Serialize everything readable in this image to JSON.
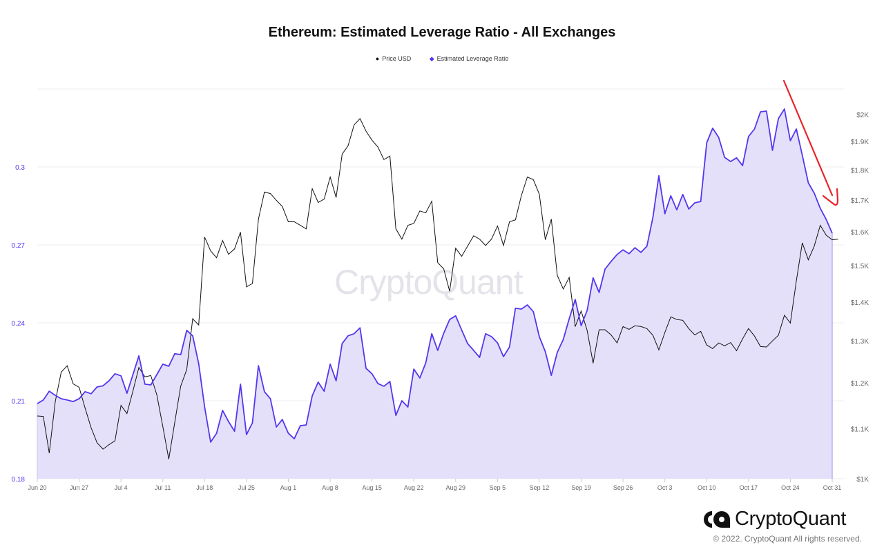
{
  "chart_data": {
    "type": "line",
    "title": "Ethereum: Estimated Leverage Ratio - All Exchanges",
    "legend": [
      "Price USD",
      "Estimated Leverage Ratio"
    ],
    "legend_placement": "top-center",
    "x_start": "2022-06-20",
    "x_end": "2022-11-01",
    "x_tick_labels": [
      "Jun 20",
      "Jun 27",
      "Jul 4",
      "Jul 11",
      "Jul 18",
      "Jul 25",
      "Aug 1",
      "Aug 8",
      "Aug 15",
      "Aug 22",
      "Aug 29",
      "Sep 5",
      "Sep 12",
      "Sep 19",
      "Sep 26",
      "Oct 3",
      "Oct 10",
      "Oct 17",
      "Oct 24",
      "Oct 31"
    ],
    "left_axis": {
      "label": "Estimated Leverage Ratio",
      "ylim": [
        0.18,
        0.33
      ],
      "ticks": [
        "0.18",
        "0.21",
        "0.24",
        "0.27",
        "0.3"
      ],
      "tick_values": [
        0.18,
        0.21,
        0.24,
        0.27,
        0.3
      ]
    },
    "right_axis": {
      "label": "Price USD",
      "scale": "log",
      "ylim": [
        1000,
        2100
      ],
      "ticks": [
        "$1K",
        "$1.1K",
        "$1.2K",
        "$1.3K",
        "$1.4K",
        "$1.5K",
        "$1.6K",
        "$1.7K",
        "$1.8K",
        "$1.9K",
        "$2K"
      ],
      "tick_values": [
        1000,
        1100,
        1200,
        1300,
        1400,
        1500,
        1600,
        1700,
        1800,
        1900,
        2000
      ]
    },
    "grid": true,
    "series": [
      {
        "name": "Estimated Leverage Ratio",
        "axis": "left",
        "color": "#5535ee",
        "fill": "#e4e0f9",
        "values": [
          0.2089,
          0.2103,
          0.2137,
          0.2121,
          0.2108,
          0.2103,
          0.2097,
          0.2108,
          0.2135,
          0.2127,
          0.2153,
          0.2158,
          0.2177,
          0.2204,
          0.2196,
          0.2129,
          0.2201,
          0.2273,
          0.2164,
          0.2161,
          0.2201,
          0.2241,
          0.2233,
          0.2281,
          0.2278,
          0.2371,
          0.235,
          0.2243,
          0.2076,
          0.1941,
          0.1975,
          0.2063,
          0.202,
          0.1983,
          0.2164,
          0.197,
          0.2015,
          0.2235,
          0.2135,
          0.2108,
          0.1999,
          0.2028,
          0.1975,
          0.1954,
          0.2004,
          0.2007,
          0.2119,
          0.2172,
          0.2137,
          0.2241,
          0.2177,
          0.232,
          0.235,
          0.2358,
          0.2381,
          0.2225,
          0.2204,
          0.2166,
          0.2156,
          0.2174,
          0.2044,
          0.21,
          0.2076,
          0.2222,
          0.2188,
          0.2246,
          0.2358,
          0.2294,
          0.236,
          0.2413,
          0.2427,
          0.2373,
          0.232,
          0.2294,
          0.2267,
          0.2358,
          0.2347,
          0.2323,
          0.227,
          0.2307,
          0.2456,
          0.2453,
          0.2469,
          0.2443,
          0.2347,
          0.2289,
          0.2198,
          0.2286,
          0.2336,
          0.2416,
          0.249,
          0.2389,
          0.2448,
          0.2573,
          0.2517,
          0.2607,
          0.2636,
          0.2663,
          0.2681,
          0.2666,
          0.2689,
          0.2671,
          0.2695,
          0.2806,
          0.2966,
          0.282,
          0.2889,
          0.2835,
          0.2894,
          0.2838,
          0.2862,
          0.2867,
          0.3093,
          0.3149,
          0.3114,
          0.3037,
          0.3021,
          0.3035,
          0.3005,
          0.3117,
          0.3146,
          0.3212,
          0.3215,
          0.3064,
          0.3186,
          0.3223,
          0.3101,
          0.3146,
          0.3045,
          0.2939,
          0.2899,
          0.2841,
          0.2798,
          0.2745
        ]
      },
      {
        "name": "Price USD",
        "axis": "right",
        "color": "#111111",
        "values": [
          1127,
          1126,
          1050,
          1158,
          1225,
          1240,
          1198,
          1190,
          1144,
          1102,
          1071,
          1058,
          1067,
          1075,
          1150,
          1132,
          1182,
          1236,
          1214,
          1217,
          1173,
          1105,
          1038,
          1113,
          1193,
          1231,
          1356,
          1340,
          1584,
          1543,
          1523,
          1574,
          1533,
          1549,
          1599,
          1441,
          1450,
          1639,
          1726,
          1721,
          1699,
          1679,
          1631,
          1631,
          1620,
          1609,
          1737,
          1692,
          1703,
          1776,
          1708,
          1855,
          1885,
          1961,
          1985,
          1938,
          1905,
          1880,
          1836,
          1848,
          1609,
          1578,
          1620,
          1626,
          1665,
          1659,
          1696,
          1509,
          1491,
          1429,
          1551,
          1527,
          1557,
          1588,
          1578,
          1559,
          1578,
          1618,
          1559,
          1631,
          1637,
          1715,
          1776,
          1767,
          1719,
          1576,
          1639,
          1473,
          1435,
          1467,
          1336,
          1376,
          1326,
          1246,
          1328,
          1328,
          1315,
          1295,
          1336,
          1329,
          1338,
          1336,
          1331,
          1314,
          1278,
          1321,
          1361,
          1354,
          1352,
          1331,
          1315,
          1324,
          1290,
          1281,
          1295,
          1288,
          1296,
          1276,
          1305,
          1331,
          1312,
          1286,
          1285,
          1300,
          1314,
          1365,
          1345,
          1458,
          1567,
          1517,
          1557,
          1620,
          1590,
          1576,
          1578
        ]
      }
    ],
    "annotation": {
      "type": "arrow",
      "direction": "down",
      "color": "#e8242a"
    }
  },
  "watermark": "CryptoQuant",
  "footer": {
    "logo_text": "CryptoQuant",
    "copyright": "© 2022. CryptoQuant All rights reserved."
  }
}
